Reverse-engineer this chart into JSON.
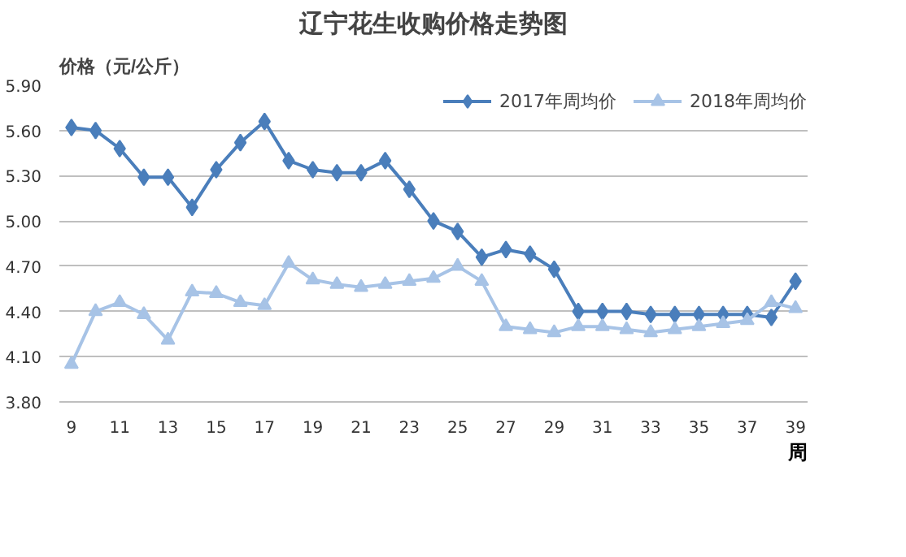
{
  "chart_data": {
    "type": "line",
    "title": "辽宁花生收购价格走势图",
    "xlabel": "周",
    "ylabel": "价格（元/公斤）",
    "x": [
      9,
      10,
      11,
      12,
      13,
      14,
      15,
      16,
      17,
      18,
      19,
      20,
      21,
      22,
      23,
      24,
      25,
      26,
      27,
      28,
      29,
      30,
      31,
      32,
      33,
      34,
      35,
      36,
      37,
      38,
      39
    ],
    "series": [
      {
        "name": "2017年周均价",
        "color": "#4a7ebb",
        "marker": "diamond",
        "values": [
          5.62,
          5.6,
          5.48,
          5.29,
          5.29,
          5.09,
          5.34,
          5.52,
          5.66,
          5.4,
          5.34,
          5.32,
          5.32,
          5.4,
          5.21,
          5.0,
          4.93,
          4.76,
          4.81,
          4.78,
          4.68,
          4.4,
          4.4,
          4.4,
          4.38,
          4.38,
          4.38,
          4.38,
          4.38,
          4.36,
          4.6
        ]
      },
      {
        "name": "2018年周均价",
        "color": "#a7c3e6",
        "marker": "triangle",
        "values": [
          4.05,
          4.4,
          4.46,
          4.38,
          4.21,
          4.53,
          4.52,
          4.46,
          4.44,
          4.72,
          4.61,
          4.58,
          4.56,
          4.58,
          4.6,
          4.62,
          4.7,
          4.6,
          4.3,
          4.28,
          4.26,
          4.3,
          4.3,
          4.28,
          4.26,
          4.28,
          4.3,
          4.32,
          4.34,
          4.46,
          4.42
        ]
      }
    ],
    "xlim": [
      8.5,
      39.5
    ],
    "xticks": [
      9,
      11,
      13,
      15,
      17,
      19,
      21,
      23,
      25,
      27,
      29,
      31,
      33,
      35,
      37,
      39
    ],
    "ylim": [
      3.8,
      5.9
    ],
    "yticks": [
      {
        "value": 3.8,
        "label": "3.80"
      },
      {
        "value": 4.1,
        "label": "4.10"
      },
      {
        "value": 4.4,
        "label": "4.40"
      },
      {
        "value": 4.7,
        "label": "4.70"
      },
      {
        "value": 5.0,
        "label": "5.00"
      },
      {
        "value": 5.3,
        "label": "5.30"
      },
      {
        "value": 5.6,
        "label": "5.60"
      },
      {
        "value": 5.9,
        "label": "5.90"
      }
    ],
    "grid": "y",
    "legend": "top right",
    "line_style": "solid"
  }
}
